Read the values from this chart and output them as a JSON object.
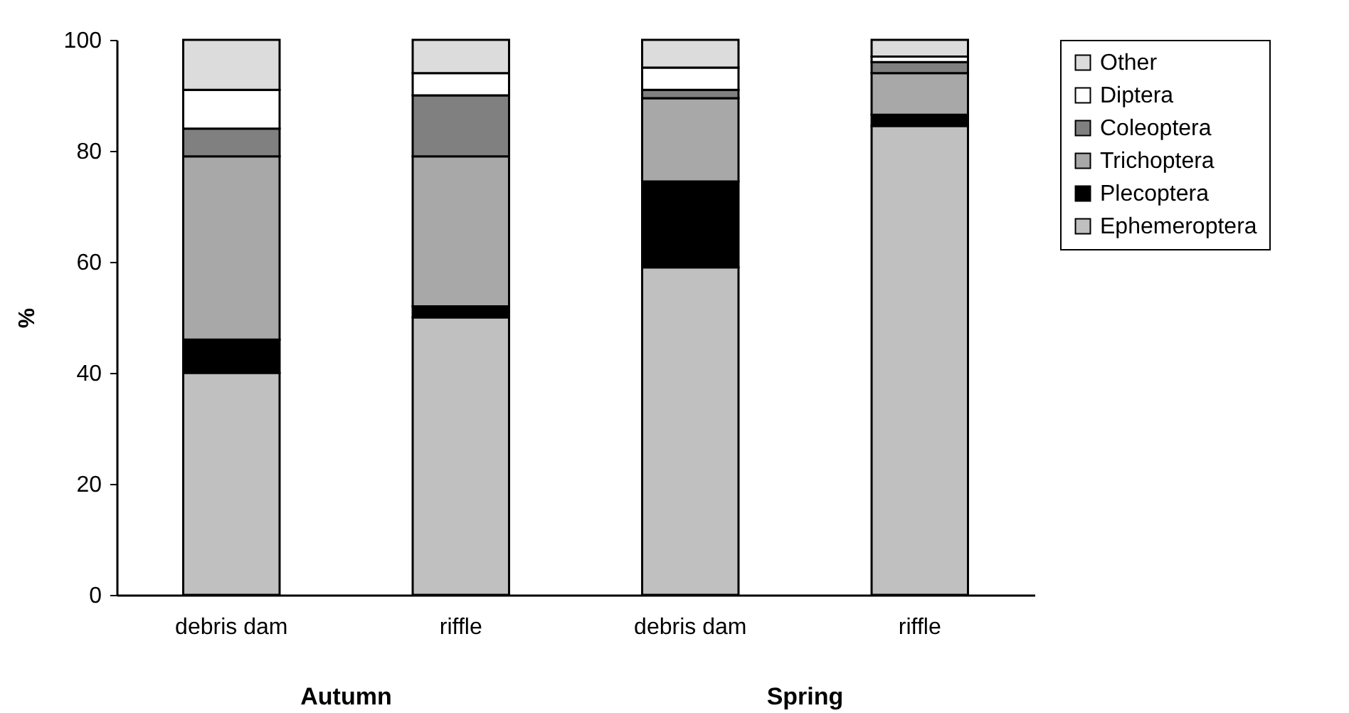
{
  "chart_data": {
    "type": "bar",
    "stacked": true,
    "ylabel": "%",
    "categories": [
      "debris dam",
      "riffle",
      "debris dam",
      "riffle"
    ],
    "series": [
      {
        "name": "Ephemeroptera",
        "color": "#c0c0c0",
        "values": [
          40,
          50,
          59,
          84.5
        ]
      },
      {
        "name": "Plecoptera",
        "color": "#000000",
        "values": [
          6,
          2,
          15.5,
          2
        ]
      },
      {
        "name": "Trichoptera",
        "color": "#a8a8a8",
        "values": [
          33,
          27,
          15,
          7.5
        ]
      },
      {
        "name": "Coleoptera",
        "color": "#808080",
        "values": [
          5,
          11,
          1.5,
          2
        ]
      },
      {
        "name": "Diptera",
        "color": "#ffffff",
        "values": [
          7,
          4,
          4,
          1
        ]
      },
      {
        "name": "Other",
        "color": "#dcdcdc",
        "values": [
          9,
          6,
          5,
          3
        ]
      }
    ],
    "ylim": [
      0,
      100
    ],
    "yticks": [
      0,
      20,
      40,
      60,
      80,
      100
    ],
    "grid": false,
    "legend": "right",
    "annotations": [
      "Autumn",
      "Spring"
    ]
  }
}
